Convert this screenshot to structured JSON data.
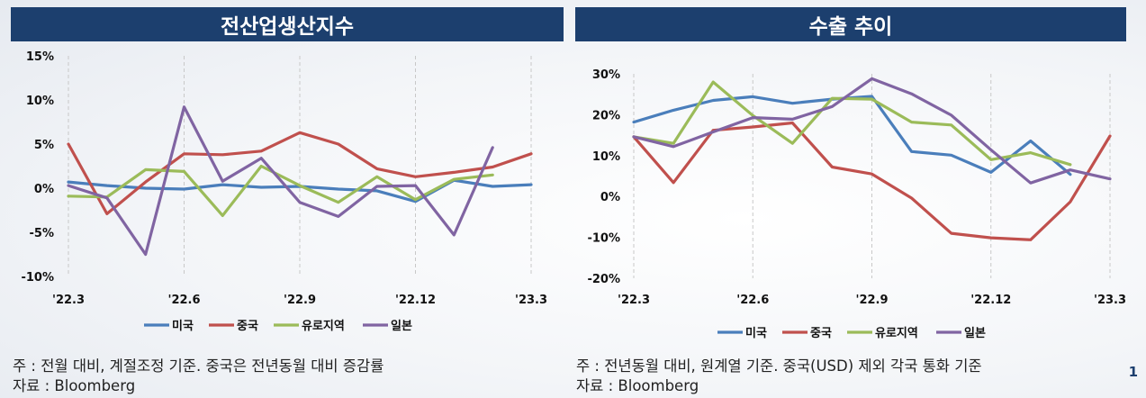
{
  "chart_data": [
    {
      "type": "line",
      "title": "전산업생산지수",
      "x": [
        "'22.3",
        "'22.4",
        "'22.5",
        "'22.6",
        "'22.7",
        "'22.8",
        "'22.9",
        "'22.10",
        "'22.11",
        "'22.12",
        "'23.1",
        "'23.2",
        "'23.3"
      ],
      "xticks": [
        "'22.3",
        "'22.6",
        "'22.9",
        "'22.12",
        "'23.3"
      ],
      "yticks": [
        "15%",
        "10%",
        "5%",
        "0%",
        "-5%",
        "-10%"
      ],
      "ylim": [
        -10,
        15
      ],
      "grid": "vertical",
      "legend_position": "bottom",
      "series": [
        {
          "name": "미국",
          "color": "#4a7ebb",
          "values": [
            0.7,
            0.3,
            0.0,
            -0.1,
            0.4,
            0.1,
            0.2,
            -0.1,
            -0.3,
            -1.5,
            0.9,
            0.2,
            0.4
          ]
        },
        {
          "name": "중국",
          "color": "#c0504d",
          "values": [
            5.0,
            -2.9,
            0.7,
            3.9,
            3.8,
            4.2,
            6.3,
            5.0,
            2.2,
            1.3,
            1.8,
            2.4,
            3.9
          ]
        },
        {
          "name": "유로지역",
          "color": "#9bbb59",
          "values": [
            -0.9,
            -1.0,
            2.1,
            1.9,
            -3.1,
            2.5,
            0.3,
            -1.6,
            1.3,
            -1.3,
            1.0,
            1.5,
            null
          ]
        },
        {
          "name": "일본",
          "color": "#8064a2",
          "values": [
            0.3,
            -1.1,
            -7.5,
            9.2,
            0.8,
            3.4,
            -1.6,
            -3.2,
            0.2,
            0.3,
            -5.3,
            4.6,
            null
          ]
        }
      ]
    },
    {
      "type": "line",
      "title": "수출 추이",
      "x": [
        "'22.3",
        "'22.4",
        "'22.5",
        "'22.6",
        "'22.7",
        "'22.8",
        "'22.9",
        "'22.10",
        "'22.11",
        "'22.12",
        "'23.1",
        "'23.2",
        "'23.3"
      ],
      "xticks": [
        "'22.3",
        "'22.6",
        "'22.9",
        "'22.12",
        "'23.3"
      ],
      "yticks": [
        "30%",
        "20%",
        "10%",
        "0%",
        "-10%",
        "-20%"
      ],
      "ylim": [
        -20,
        30
      ],
      "grid": "vertical",
      "legend_position": "bottom",
      "series": [
        {
          "name": "미국",
          "color": "#4a7ebb",
          "values": [
            18.2,
            21.1,
            23.5,
            24.4,
            22.8,
            23.8,
            24.5,
            11.0,
            10.1,
            5.9,
            13.6,
            5.4,
            null
          ]
        },
        {
          "name": "중국",
          "color": "#c0504d",
          "values": [
            14.6,
            3.4,
            16.2,
            17.0,
            18.0,
            7.2,
            5.5,
            -0.4,
            -9.0,
            -10.1,
            -10.6,
            -1.3,
            14.8
          ]
        },
        {
          "name": "유로지역",
          "color": "#9bbb59",
          "values": [
            14.6,
            13.0,
            28.0,
            19.8,
            13.0,
            24.0,
            23.8,
            18.2,
            17.5,
            9.0,
            10.7,
            7.8,
            null
          ]
        },
        {
          "name": "일본",
          "color": "#8064a2",
          "values": [
            14.6,
            12.2,
            15.8,
            19.3,
            18.9,
            22.0,
            28.8,
            25.1,
            19.9,
            11.4,
            3.3,
            6.5,
            4.3
          ]
        }
      ]
    }
  ],
  "notes": {
    "left_note": "주 : 전월 대비, 계절조정 기준. 중국은 전년동월 대비 증감률",
    "left_source": "자료 : Bloomberg",
    "right_note": "주 : 전년동월 대비, 원계열 기준. 중국(USD) 제외 각국 통화 기준",
    "right_source": "자료 : Bloomberg"
  },
  "page_number": "1"
}
